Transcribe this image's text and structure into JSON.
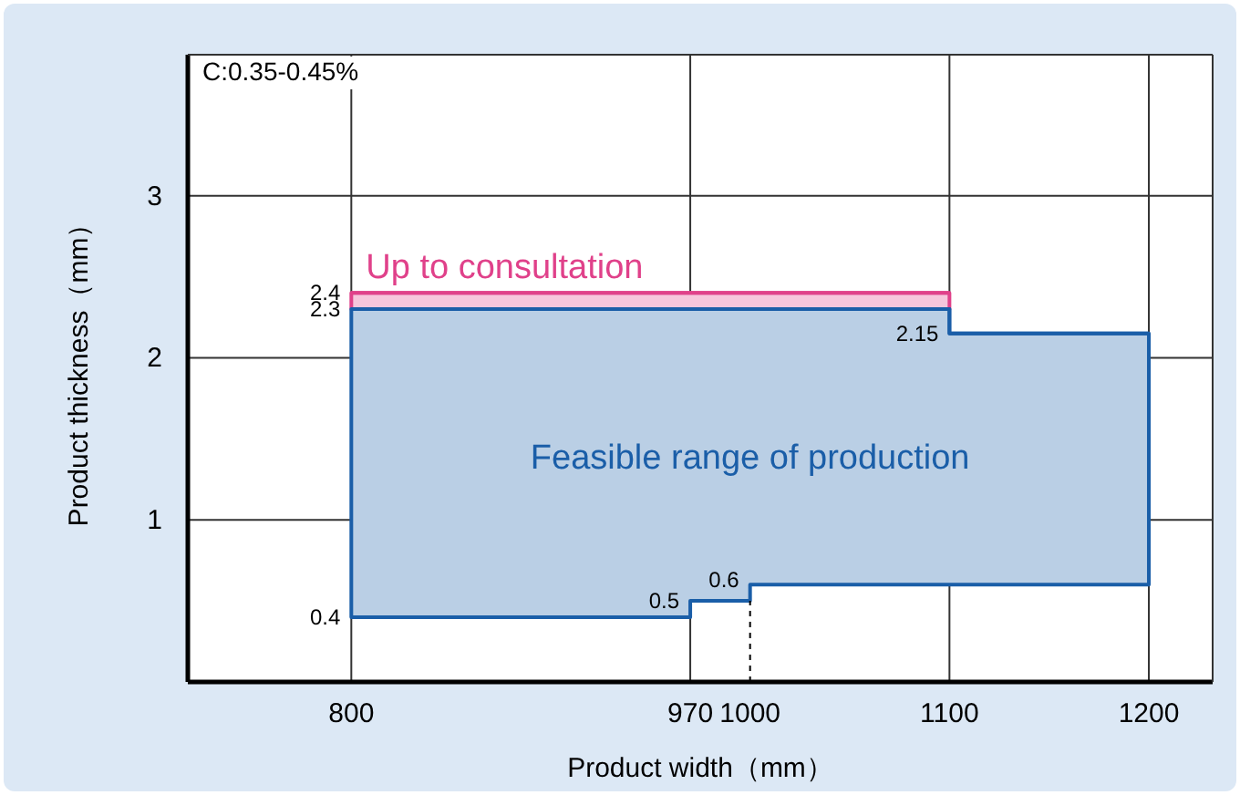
{
  "chart_data": {
    "type": "line",
    "xlabel": "Product width（mm）",
    "ylabel": "Product thickness（mm）",
    "xlim": [
      718,
      1232
    ],
    "xticks": [
      800,
      970,
      1000,
      1100,
      1200
    ],
    "ylim": [
      0,
      3.87
    ],
    "yticks": [
      1,
      2,
      3
    ],
    "grid": true,
    "series": [
      {
        "name": "Feasible range of production",
        "color": "#1a5ea8",
        "values": [
          2.3,
          2.3,
          2.3,
          2.3,
          2.3,
          2.3,
          2.15,
          2.15
        ],
        "x": [
          800,
          970,
          970,
          1000,
          1000,
          1100,
          1100,
          1200
        ],
        "lower": [
          0.4,
          0.4,
          0.5,
          0.5,
          0.6,
          0.6,
          0.6,
          0.6
        ],
        "upper": [
          2.3,
          2.3,
          2.3,
          2.3,
          2.3,
          2.3,
          2.15,
          2.15
        ]
      },
      {
        "name": "Up to consultation",
        "color": "#e0418a",
        "x": [
          800,
          1100
        ],
        "lower": [
          2.3,
          2.3
        ],
        "upper": [
          2.4,
          2.4
        ],
        "values": [
          2.4,
          2.4
        ]
      }
    ],
    "ref_lines": [
      {
        "axis": "x",
        "value": 1000,
        "line_style": "dashed",
        "color": "#000000"
      }
    ],
    "annotations": [
      "C:0.35-0.45%",
      {
        "text": "2.4",
        "x": 800,
        "y": 2.4
      },
      {
        "text": "2.3",
        "x": 800,
        "y": 2.3
      },
      {
        "text": "0.4",
        "x": 800,
        "y": 0.4
      },
      {
        "text": "0.5",
        "x": 970,
        "y": 0.5
      },
      {
        "text": "0.6",
        "x": 1000,
        "y": 0.63
      },
      {
        "text": "2.15",
        "x": 1100,
        "y": 2.15
      }
    ]
  }
}
